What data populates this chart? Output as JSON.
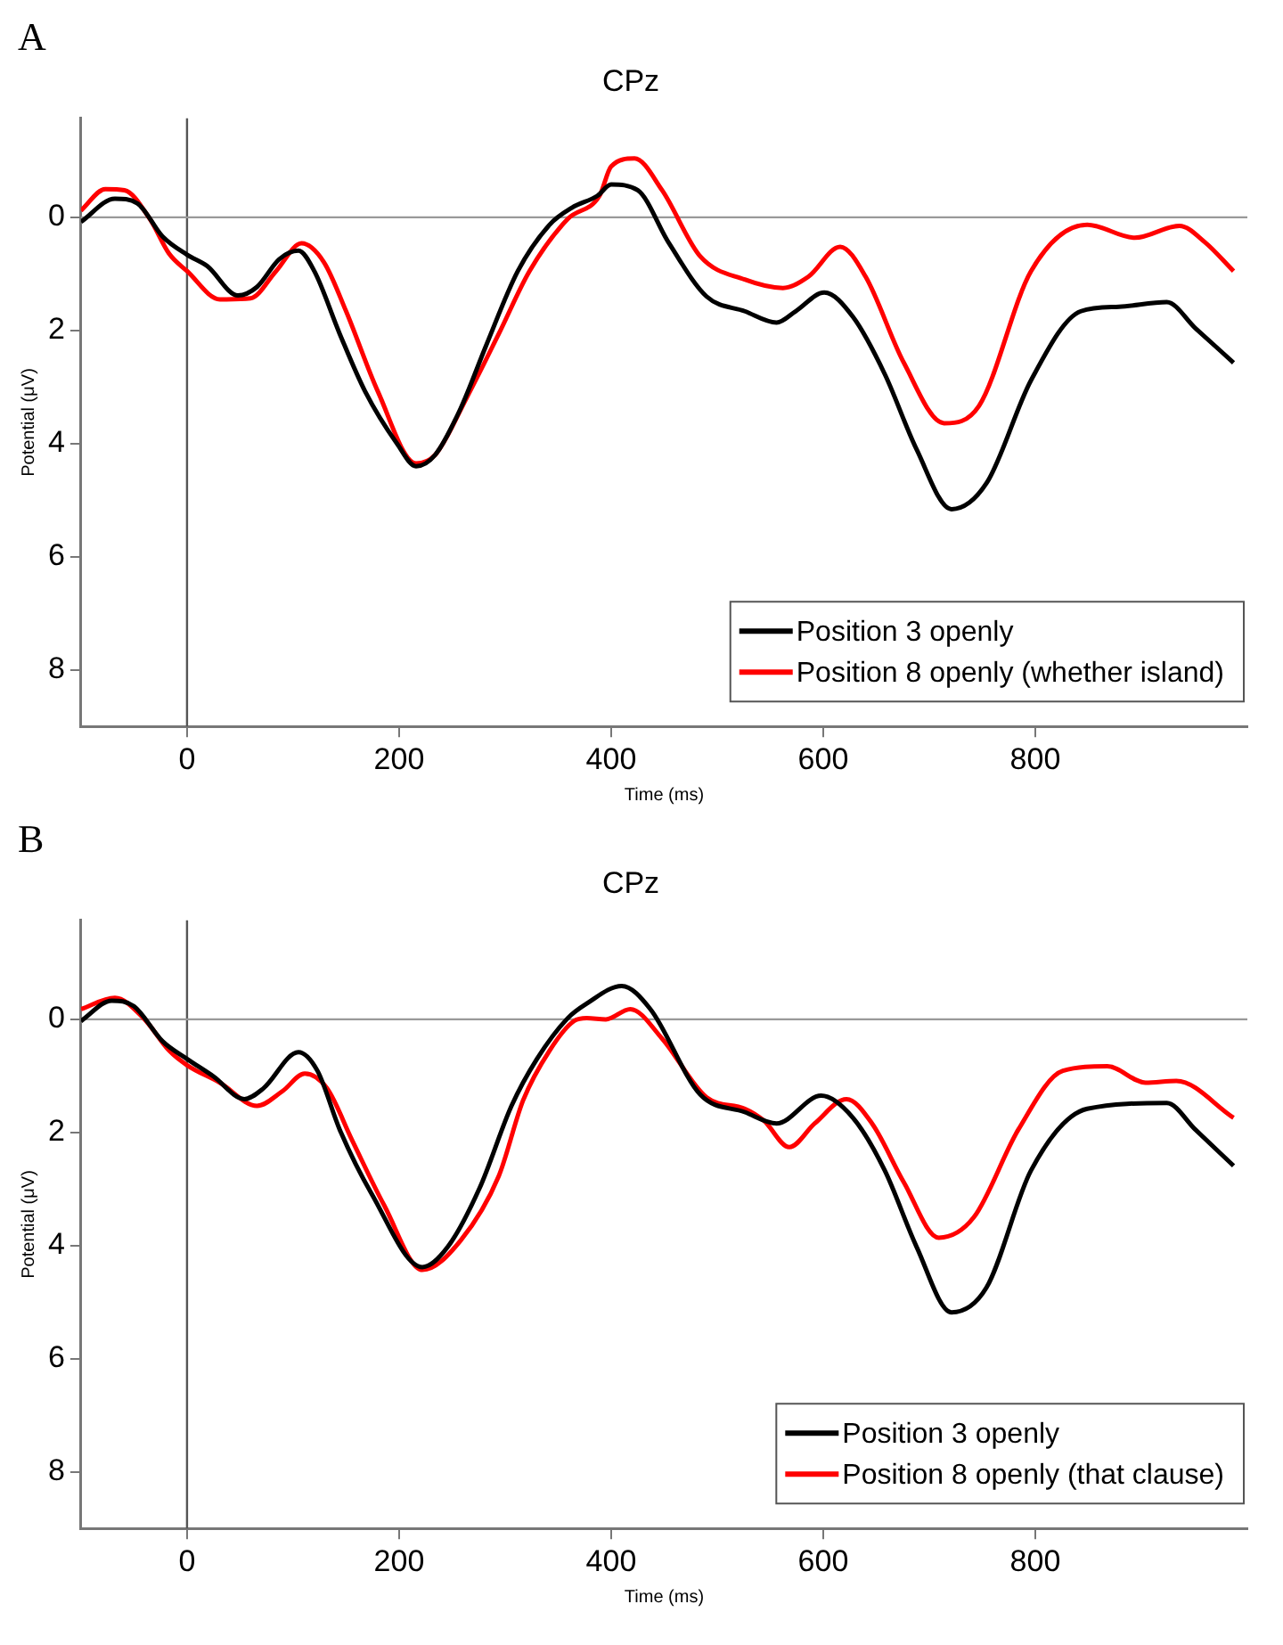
{
  "chart_data": [
    {
      "type": "line",
      "title": "CPz",
      "xlabel": "Time (ms)",
      "ylabel": "Potential (μV)",
      "annotations": [
        "A"
      ],
      "xlim": [
        -100,
        1000
      ],
      "ylim": [
        9,
        -1.75
      ],
      "xticks": [
        0,
        200,
        400,
        600,
        800
      ],
      "yticks": [
        0,
        2,
        4,
        6,
        8
      ],
      "legend": "bottom right",
      "ref_lines": [
        {
          "axis": "x",
          "value": 0,
          "color": "#555555"
        },
        {
          "axis": "y",
          "value": 0,
          "color": "#999999"
        }
      ],
      "series": [
        {
          "name": "Position 3 openly",
          "color": "#000000",
          "x": [
            -100,
            -68,
            -47,
            -23,
            0,
            19,
            48,
            66,
            87,
            105,
            120,
            144,
            168,
            198,
            216,
            234,
            258,
            282,
            312,
            342,
            363,
            387,
            400,
            425,
            454,
            490,
            526,
            556,
            574,
            601,
            628,
            658,
            688,
            721,
            754,
            796,
            843,
            879,
            924,
            951,
            987
          ],
          "values": [
            0.08,
            -0.33,
            -0.25,
            0.34,
            0.66,
            0.86,
            1.38,
            1.23,
            0.74,
            0.59,
            0.95,
            2.06,
            3.08,
            4.0,
            4.4,
            4.2,
            3.38,
            2.27,
            0.95,
            0.13,
            -0.17,
            -0.38,
            -0.58,
            -0.48,
            0.44,
            1.4,
            1.66,
            1.86,
            1.66,
            1.33,
            1.76,
            2.77,
            4.1,
            5.16,
            4.7,
            2.88,
            1.66,
            1.58,
            1.5,
            1.96,
            2.57
          ]
        },
        {
          "name": "Position 8 openly (whether island)",
          "color": "#ff0000",
          "x": [
            -100,
            -77,
            -59,
            -35,
            -17,
            0,
            31,
            60,
            84,
            108,
            129,
            150,
            180,
            216,
            234,
            264,
            294,
            323,
            359,
            389,
            400,
            422,
            448,
            484,
            526,
            562,
            586,
            616,
            640,
            676,
            714,
            747,
            796,
            849,
            894,
            936,
            960,
            987
          ],
          "values": [
            -0.12,
            -0.5,
            -0.48,
            0.03,
            0.64,
            0.95,
            1.45,
            1.43,
            0.95,
            0.46,
            0.79,
            1.66,
            3.08,
            4.35,
            4.2,
            3.18,
            2.06,
            0.95,
            0.03,
            -0.38,
            -0.9,
            -1.04,
            -0.48,
            0.69,
            1.1,
            1.25,
            1.05,
            0.52,
            1.05,
            2.57,
            3.64,
            3.33,
            0.95,
            0.13,
            0.36,
            0.15,
            0.44,
            0.95
          ]
        }
      ]
    },
    {
      "type": "line",
      "title": "CPz",
      "xlabel": "Time (ms)",
      "ylabel": "Potential (μV)",
      "annotations": [
        "B"
      ],
      "xlim": [
        -100,
        1000
      ],
      "ylim": [
        9,
        -1.75
      ],
      "xticks": [
        0,
        200,
        400,
        600,
        800
      ],
      "yticks": [
        0,
        2,
        4,
        6,
        8
      ],
      "legend": "bottom right",
      "ref_lines": [
        {
          "axis": "x",
          "value": 0,
          "color": "#555555"
        },
        {
          "axis": "y",
          "value": 0,
          "color": "#999999"
        }
      ],
      "series": [
        {
          "name": "Position 3 openly",
          "color": "#000000",
          "x": [
            -100,
            -71,
            -50,
            -23,
            0,
            25,
            54,
            72,
            105,
            123,
            144,
            174,
            222,
            246,
            276,
            306,
            330,
            359,
            377,
            410,
            437,
            484,
            526,
            556,
            598,
            628,
            658,
            688,
            721,
            754,
            796,
            849,
            924,
            951,
            987
          ],
          "values": [
            0.03,
            -0.33,
            -0.23,
            0.39,
            0.7,
            1.01,
            1.41,
            1.22,
            0.58,
            0.91,
            1.95,
            3.08,
            4.38,
            4.02,
            2.98,
            1.53,
            0.7,
            -0.02,
            -0.28,
            -0.59,
            -0.18,
            1.33,
            1.64,
            1.84,
            1.35,
            1.74,
            2.67,
            4.02,
            5.18,
            4.74,
            2.67,
            1.58,
            1.48,
            1.95,
            2.59
          ]
        },
        {
          "name": "Position 8 openly (that clause)",
          "color": "#ff0000",
          "x": [
            -100,
            -68,
            -41,
            -17,
            0,
            31,
            66,
            90,
            111,
            132,
            156,
            186,
            222,
            258,
            294,
            317,
            342,
            365,
            377,
            395,
            418,
            448,
            490,
            526,
            544,
            568,
            592,
            622,
            646,
            676,
            709,
            742,
            784,
            826,
            868,
            904,
            933,
            987
          ],
          "values": [
            -0.18,
            -0.38,
            -0.02,
            0.55,
            0.81,
            1.12,
            1.53,
            1.27,
            0.96,
            1.22,
            2.15,
            3.29,
            4.43,
            3.91,
            2.77,
            1.43,
            0.55,
            0.03,
            -0.02,
            0,
            -0.18,
            0.34,
            1.38,
            1.58,
            1.79,
            2.26,
            1.84,
            1.41,
            1.84,
            2.88,
            3.86,
            3.5,
            1.95,
            0.91,
            0.83,
            1.12,
            1.09,
            1.74
          ]
        }
      ]
    }
  ]
}
